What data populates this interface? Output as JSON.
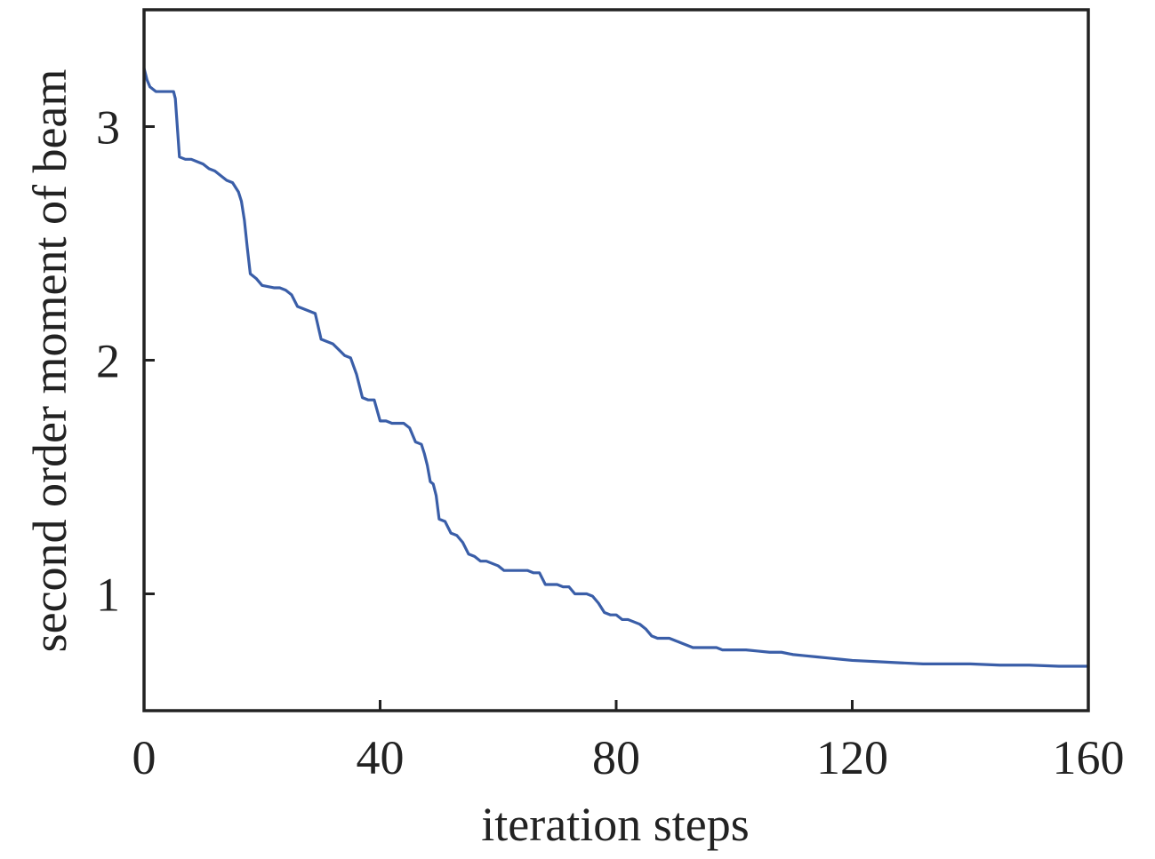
{
  "chart_data": {
    "type": "line",
    "title": "",
    "xlabel": "iteration steps",
    "ylabel": "second order moment of beam",
    "xlim": [
      0,
      160
    ],
    "ylim": [
      0.5,
      3.5
    ],
    "xticks": [
      0,
      40,
      80,
      120,
      160
    ],
    "xtick_labels": [
      "0",
      "40",
      "80",
      "120",
      "160"
    ],
    "yticks": [
      1,
      2,
      3
    ],
    "ytick_labels": [
      "1",
      "2",
      "3"
    ],
    "grid": false,
    "legend": "none",
    "colors": {
      "line": "#3a5ea8",
      "axes": "#222222"
    },
    "series": [
      {
        "x": [
          0,
          0.5,
          1,
          1.5,
          2,
          3,
          4,
          5,
          5.3,
          6,
          7,
          8,
          9,
          10,
          11,
          12,
          13,
          14,
          15,
          16,
          16.5,
          17,
          17.5,
          18,
          19,
          20,
          22,
          23,
          24,
          25,
          26,
          27,
          28,
          29,
          30,
          31,
          32,
          34,
          35,
          36,
          37,
          38,
          39,
          40,
          41,
          42,
          43,
          44,
          45,
          46,
          47,
          47.5,
          48,
          48.5,
          49,
          49.5,
          50,
          51,
          52,
          53,
          54,
          55,
          56,
          57,
          58,
          59,
          60,
          61,
          62,
          63,
          64,
          65,
          66,
          67,
          68,
          69,
          70,
          71,
          72,
          73,
          74,
          75,
          76,
          77,
          78,
          79,
          80,
          81,
          82,
          83,
          84,
          85,
          86,
          87,
          88,
          89,
          90,
          91,
          92,
          93,
          94,
          95,
          96,
          97,
          98,
          99,
          100,
          102,
          104,
          106,
          108,
          110,
          112,
          114,
          116,
          118,
          120,
          124,
          128,
          132,
          136,
          140,
          145,
          150,
          155,
          160
        ],
        "y": [
          3.25,
          3.2,
          3.17,
          3.16,
          3.15,
          3.15,
          3.15,
          3.15,
          3.12,
          2.87,
          2.86,
          2.86,
          2.85,
          2.84,
          2.82,
          2.81,
          2.79,
          2.77,
          2.76,
          2.72,
          2.68,
          2.6,
          2.48,
          2.37,
          2.35,
          2.32,
          2.31,
          2.31,
          2.3,
          2.28,
          2.23,
          2.22,
          2.21,
          2.2,
          2.09,
          2.08,
          2.07,
          2.02,
          2.01,
          1.94,
          1.84,
          1.83,
          1.83,
          1.74,
          1.74,
          1.73,
          1.73,
          1.73,
          1.71,
          1.65,
          1.64,
          1.6,
          1.55,
          1.48,
          1.47,
          1.42,
          1.32,
          1.31,
          1.26,
          1.25,
          1.22,
          1.17,
          1.16,
          1.14,
          1.14,
          1.13,
          1.12,
          1.1,
          1.1,
          1.1,
          1.1,
          1.1,
          1.09,
          1.09,
          1.04,
          1.04,
          1.04,
          1.03,
          1.03,
          1.0,
          1.0,
          1.0,
          0.99,
          0.96,
          0.92,
          0.91,
          0.91,
          0.89,
          0.89,
          0.88,
          0.87,
          0.85,
          0.82,
          0.81,
          0.81,
          0.81,
          0.8,
          0.79,
          0.78,
          0.77,
          0.77,
          0.77,
          0.77,
          0.77,
          0.76,
          0.76,
          0.76,
          0.76,
          0.755,
          0.75,
          0.75,
          0.74,
          0.735,
          0.73,
          0.725,
          0.72,
          0.715,
          0.71,
          0.705,
          0.7,
          0.7,
          0.7,
          0.695,
          0.695,
          0.69,
          0.69
        ]
      }
    ]
  }
}
